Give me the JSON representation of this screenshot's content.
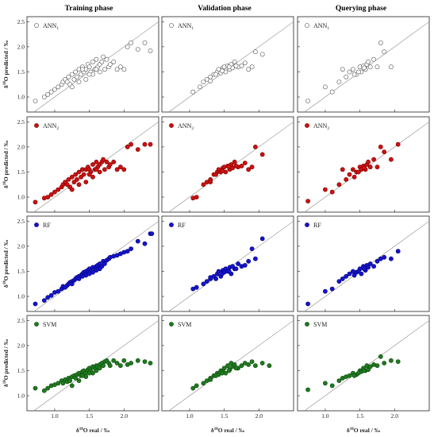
{
  "columns": [
    "Training phase",
    "Validation phase",
    "Querying phase"
  ],
  "rows": [
    {
      "label_main": "ANN",
      "label_sub": "1",
      "color": "#ffffff",
      "stroke": "#555555"
    },
    {
      "label_main": "ANN",
      "label_sub": "2",
      "color": "#cc1111",
      "stroke": "#7a0000"
    },
    {
      "label_main": "RF",
      "label_sub": "",
      "color": "#1515cc",
      "stroke": "#00007a"
    },
    {
      "label_main": "SVM",
      "label_sub": "",
      "color": "#1f7a1f",
      "stroke": "#0d4a0d"
    }
  ],
  "ylabel": {
    "pre": "δ",
    "sup": "18",
    "post": "O predicted / ‰"
  },
  "xlabel": {
    "pre": "δ",
    "sup": "18",
    "post": "O real / ‰"
  },
  "chart_data": {
    "type": "scatter",
    "layout": "4x3 grid",
    "xlim": [
      0.6,
      2.5
    ],
    "ylim": [
      0.7,
      2.6
    ],
    "x_ticks": [
      "1.0",
      "1.5",
      "2.0"
    ],
    "y_ticks": [
      "1.0",
      "1.5",
      "2.0",
      "2.5"
    ],
    "reference_line": "1:1",
    "series": [
      {
        "name": "ANN1",
        "phase": "Training phase",
        "x": [
          0.72,
          0.85,
          0.9,
          0.95,
          1.0,
          1.05,
          1.1,
          1.12,
          1.15,
          1.18,
          1.2,
          1.22,
          1.25,
          1.28,
          1.3,
          1.32,
          1.35,
          1.38,
          1.4,
          1.42,
          1.45,
          1.48,
          1.5,
          1.52,
          1.55,
          1.58,
          1.6,
          1.62,
          1.65,
          1.68,
          1.7,
          1.72,
          1.75,
          1.78,
          1.8,
          1.85,
          1.9,
          1.95,
          2.0,
          2.05,
          2.1,
          2.2,
          2.3,
          2.38,
          1.25,
          1.35,
          1.45,
          1.55,
          1.65,
          1.4,
          1.5,
          1.6
        ],
        "y": [
          0.92,
          1.0,
          1.05,
          1.1,
          1.15,
          1.2,
          1.25,
          1.3,
          1.35,
          1.3,
          1.4,
          1.25,
          1.45,
          1.35,
          1.5,
          1.4,
          1.55,
          1.45,
          1.6,
          1.5,
          1.55,
          1.65,
          1.6,
          1.5,
          1.7,
          1.55,
          1.75,
          1.6,
          1.65,
          1.7,
          1.8,
          1.55,
          1.75,
          1.6,
          1.65,
          1.7,
          1.55,
          1.6,
          1.55,
          2.0,
          2.08,
          1.95,
          2.08,
          1.92,
          1.2,
          1.3,
          1.35,
          1.45,
          1.5,
          1.55,
          1.45,
          1.55
        ]
      },
      {
        "name": "ANN1",
        "phase": "Validation phase",
        "x": [
          1.05,
          1.15,
          1.2,
          1.25,
          1.3,
          1.35,
          1.4,
          1.42,
          1.45,
          1.48,
          1.5,
          1.52,
          1.55,
          1.58,
          1.6,
          1.62,
          1.65,
          1.7,
          1.75,
          1.8,
          1.85,
          1.9,
          1.95,
          2.05,
          1.38,
          1.47,
          1.57,
          1.67,
          1.3
        ],
        "y": [
          1.1,
          1.2,
          1.3,
          1.35,
          1.4,
          1.45,
          1.5,
          1.55,
          1.48,
          1.58,
          1.6,
          1.5,
          1.62,
          1.55,
          1.65,
          1.58,
          1.7,
          1.6,
          1.62,
          1.68,
          1.55,
          1.6,
          1.9,
          1.85,
          1.45,
          1.52,
          1.6,
          1.62,
          1.32
        ]
      },
      {
        "name": "ANN1",
        "phase": "Querying phase",
        "x": [
          0.75,
          1.0,
          1.1,
          1.2,
          1.25,
          1.3,
          1.35,
          1.4,
          1.45,
          1.5,
          1.52,
          1.55,
          1.58,
          1.6,
          1.62,
          1.65,
          1.7,
          1.75,
          1.8,
          1.85,
          1.95,
          1.42,
          1.48,
          1.56
        ],
        "y": [
          0.92,
          1.2,
          1.1,
          1.3,
          1.55,
          1.4,
          1.5,
          1.55,
          1.45,
          1.6,
          1.5,
          1.62,
          1.55,
          1.65,
          1.7,
          1.6,
          1.75,
          1.6,
          2.08,
          1.9,
          1.6,
          1.45,
          1.5,
          1.58
        ]
      },
      {
        "name": "ANN2",
        "phase": "Training phase",
        "x": [
          0.72,
          0.85,
          0.9,
          0.95,
          1.0,
          1.05,
          1.1,
          1.12,
          1.15,
          1.18,
          1.2,
          1.22,
          1.25,
          1.28,
          1.3,
          1.32,
          1.35,
          1.38,
          1.4,
          1.42,
          1.45,
          1.48,
          1.5,
          1.52,
          1.55,
          1.58,
          1.6,
          1.62,
          1.65,
          1.68,
          1.7,
          1.72,
          1.75,
          1.78,
          1.8,
          1.85,
          1.9,
          1.95,
          2.0,
          2.05,
          2.1,
          2.2,
          2.3,
          2.38,
          1.25,
          1.35,
          1.45,
          1.55,
          1.65,
          1.4,
          1.5,
          1.6
        ],
        "y": [
          0.9,
          0.98,
          1.0,
          1.05,
          1.1,
          1.15,
          1.2,
          1.25,
          1.3,
          1.25,
          1.35,
          1.2,
          1.4,
          1.3,
          1.45,
          1.35,
          1.5,
          1.4,
          1.55,
          1.45,
          1.55,
          1.6,
          1.55,
          1.5,
          1.65,
          1.55,
          1.7,
          1.6,
          1.65,
          1.7,
          1.75,
          1.55,
          1.7,
          1.6,
          1.65,
          1.7,
          1.55,
          1.6,
          1.55,
          2.0,
          2.05,
          1.95,
          2.05,
          2.05,
          1.15,
          1.25,
          1.3,
          1.4,
          1.5,
          1.55,
          1.45,
          1.55
        ]
      },
      {
        "name": "ANN2",
        "phase": "Validation phase",
        "x": [
          1.05,
          1.1,
          1.2,
          1.25,
          1.3,
          1.35,
          1.4,
          1.42,
          1.45,
          1.48,
          1.5,
          1.52,
          1.55,
          1.58,
          1.6,
          1.62,
          1.65,
          1.7,
          1.75,
          1.8,
          1.85,
          1.9,
          1.95,
          2.05,
          1.38,
          1.47,
          1.57,
          1.67,
          1.3
        ],
        "y": [
          0.98,
          1.0,
          1.25,
          1.3,
          1.35,
          1.45,
          1.5,
          1.55,
          1.5,
          1.58,
          1.6,
          1.5,
          1.62,
          1.55,
          1.65,
          1.58,
          1.7,
          1.6,
          1.62,
          1.68,
          1.55,
          1.6,
          2.0,
          1.85,
          1.45,
          1.52,
          1.6,
          1.62,
          1.3
        ]
      },
      {
        "name": "ANN2",
        "phase": "Querying phase",
        "x": [
          0.75,
          1.0,
          1.1,
          1.2,
          1.25,
          1.3,
          1.35,
          1.4,
          1.45,
          1.5,
          1.52,
          1.55,
          1.58,
          1.6,
          1.62,
          1.65,
          1.7,
          1.75,
          1.8,
          1.85,
          1.95,
          2.05,
          1.42,
          1.48,
          1.56
        ],
        "y": [
          0.92,
          1.15,
          1.1,
          1.25,
          1.55,
          1.35,
          1.45,
          1.55,
          1.5,
          1.6,
          1.55,
          1.62,
          1.55,
          1.65,
          1.7,
          1.6,
          1.75,
          1.6,
          2.0,
          1.9,
          1.75,
          2.05,
          1.4,
          1.5,
          1.58
        ]
      },
      {
        "name": "RF",
        "phase": "Training phase",
        "x": [
          0.72,
          0.85,
          0.9,
          0.95,
          1.0,
          1.05,
          1.1,
          1.12,
          1.15,
          1.18,
          1.2,
          1.22,
          1.25,
          1.28,
          1.3,
          1.32,
          1.35,
          1.38,
          1.4,
          1.42,
          1.45,
          1.48,
          1.5,
          1.52,
          1.55,
          1.58,
          1.6,
          1.62,
          1.65,
          1.68,
          1.7,
          1.72,
          1.75,
          1.78,
          1.8,
          1.85,
          1.9,
          1.95,
          2.0,
          2.05,
          2.1,
          2.2,
          2.3,
          2.38,
          2.4,
          1.25,
          1.35,
          1.45,
          1.55,
          1.65,
          1.4,
          1.5,
          1.6
        ],
        "y": [
          0.85,
          0.92,
          0.98,
          1.02,
          1.08,
          1.1,
          1.15,
          1.2,
          1.18,
          1.22,
          1.25,
          1.28,
          1.3,
          1.32,
          1.35,
          1.38,
          1.4,
          1.42,
          1.45,
          1.48,
          1.5,
          1.52,
          1.55,
          1.5,
          1.58,
          1.55,
          1.6,
          1.62,
          1.65,
          1.6,
          1.7,
          1.65,
          1.72,
          1.75,
          1.78,
          1.8,
          1.82,
          1.85,
          1.88,
          1.9,
          1.95,
          2.1,
          2.05,
          2.25,
          2.25,
          1.25,
          1.35,
          1.42,
          1.48,
          1.55,
          1.4,
          1.45,
          1.52
        ]
      },
      {
        "name": "RF",
        "phase": "Validation phase",
        "x": [
          1.05,
          1.1,
          1.2,
          1.25,
          1.3,
          1.35,
          1.4,
          1.42,
          1.45,
          1.48,
          1.5,
          1.52,
          1.55,
          1.58,
          1.6,
          1.62,
          1.65,
          1.7,
          1.75,
          1.8,
          1.85,
          1.9,
          1.95,
          2.05,
          1.38,
          1.47,
          1.57,
          1.67,
          1.3
        ],
        "y": [
          1.15,
          1.18,
          1.25,
          1.3,
          1.35,
          1.4,
          1.45,
          1.5,
          1.4,
          1.52,
          1.48,
          1.55,
          1.5,
          1.58,
          1.45,
          1.6,
          1.55,
          1.65,
          1.6,
          1.62,
          1.7,
          1.95,
          1.75,
          2.15,
          1.35,
          1.45,
          1.5,
          1.55,
          1.38
        ]
      },
      {
        "name": "RF",
        "phase": "Querying phase",
        "x": [
          0.75,
          1.0,
          1.1,
          1.2,
          1.25,
          1.3,
          1.35,
          1.4,
          1.45,
          1.5,
          1.52,
          1.55,
          1.58,
          1.6,
          1.62,
          1.65,
          1.7,
          1.75,
          1.8,
          1.85,
          1.95,
          2.05,
          1.42,
          1.48,
          1.56
        ],
        "y": [
          0.85,
          1.1,
          1.15,
          1.3,
          1.35,
          1.4,
          1.45,
          1.5,
          1.48,
          1.55,
          1.45,
          1.6,
          1.52,
          1.62,
          1.58,
          1.65,
          1.6,
          1.7,
          1.75,
          1.78,
          1.75,
          1.9,
          1.42,
          1.5,
          1.55
        ]
      },
      {
        "name": "SVM",
        "phase": "Training phase",
        "x": [
          0.72,
          0.85,
          0.9,
          0.95,
          1.0,
          1.05,
          1.1,
          1.12,
          1.15,
          1.18,
          1.2,
          1.22,
          1.25,
          1.28,
          1.3,
          1.32,
          1.35,
          1.38,
          1.4,
          1.42,
          1.45,
          1.48,
          1.5,
          1.52,
          1.55,
          1.58,
          1.6,
          1.62,
          1.65,
          1.68,
          1.7,
          1.72,
          1.75,
          1.78,
          1.8,
          1.85,
          1.9,
          1.95,
          2.0,
          2.05,
          2.1,
          2.2,
          2.3,
          2.38,
          1.25,
          1.35,
          1.45,
          1.55,
          1.65,
          1.4,
          1.5,
          1.6
        ],
        "y": [
          1.15,
          1.1,
          1.15,
          1.2,
          1.22,
          1.25,
          1.3,
          1.25,
          1.32,
          1.28,
          1.35,
          1.3,
          1.38,
          1.4,
          1.35,
          1.42,
          1.45,
          1.4,
          1.48,
          1.5,
          1.45,
          1.52,
          1.55,
          1.5,
          1.58,
          1.55,
          1.6,
          1.58,
          1.62,
          1.65,
          1.6,
          1.68,
          1.7,
          1.65,
          1.6,
          1.7,
          1.65,
          1.6,
          1.7,
          1.62,
          1.65,
          1.7,
          1.68,
          1.65,
          1.2,
          1.3,
          1.38,
          1.45,
          1.55,
          1.4,
          1.45,
          1.5
        ]
      },
      {
        "name": "SVM",
        "phase": "Validation phase",
        "x": [
          1.05,
          1.1,
          1.2,
          1.25,
          1.3,
          1.35,
          1.4,
          1.42,
          1.45,
          1.48,
          1.5,
          1.52,
          1.55,
          1.58,
          1.6,
          1.62,
          1.65,
          1.7,
          1.75,
          1.8,
          1.85,
          1.9,
          1.95,
          2.05,
          2.15,
          1.38,
          1.47,
          1.57,
          1.67,
          1.3
        ],
        "y": [
          1.15,
          1.2,
          1.25,
          1.3,
          1.35,
          1.4,
          1.45,
          1.42,
          1.5,
          1.48,
          1.55,
          1.45,
          1.6,
          1.52,
          1.65,
          1.58,
          1.62,
          1.55,
          1.6,
          1.65,
          1.62,
          1.68,
          1.6,
          1.65,
          1.6,
          1.4,
          1.45,
          1.5,
          1.55,
          1.32
        ]
      },
      {
        "name": "SVM",
        "phase": "Querying phase",
        "x": [
          0.75,
          1.0,
          1.1,
          1.2,
          1.25,
          1.3,
          1.35,
          1.4,
          1.45,
          1.5,
          1.52,
          1.55,
          1.58,
          1.6,
          1.62,
          1.65,
          1.7,
          1.75,
          1.8,
          1.85,
          1.95,
          2.05,
          1.42,
          1.48,
          1.56
        ],
        "y": [
          1.12,
          1.25,
          1.2,
          1.3,
          1.35,
          1.38,
          1.4,
          1.45,
          1.42,
          1.5,
          1.48,
          1.55,
          1.5,
          1.6,
          1.52,
          1.58,
          1.62,
          1.6,
          1.78,
          1.65,
          1.7,
          1.68,
          1.4,
          1.45,
          1.5
        ]
      }
    ]
  }
}
